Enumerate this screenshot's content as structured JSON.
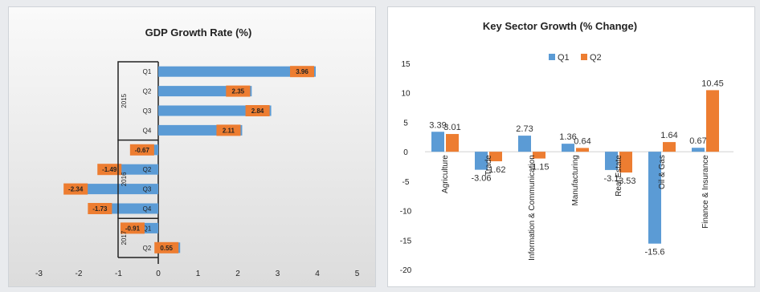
{
  "colors": {
    "q1": "#5b9bd5",
    "q2": "#ed7d31",
    "axis": "#222222"
  },
  "chart_data": [
    {
      "type": "bar",
      "orientation": "horizontal",
      "title": "GDP Growth Rate (%)",
      "xlim": [
        -3,
        5
      ],
      "x_ticks": [
        "-3",
        "-2",
        "-1",
        "0",
        "1",
        "2",
        "3",
        "4",
        "5"
      ],
      "grid": false,
      "groups": [
        {
          "label": "2015",
          "categories": [
            "Q1",
            "Q2",
            "Q3",
            "Q4"
          ],
          "values": [
            3.96,
            2.35,
            2.84,
            2.11
          ]
        },
        {
          "label": "2016",
          "categories": [
            "Q1",
            "Q2",
            "Q3",
            "Q4"
          ],
          "values": [
            -0.67,
            -1.49,
            -2.34,
            -1.73
          ]
        },
        {
          "label": "2017",
          "categories": [
            "Q1",
            "Q2"
          ],
          "values": [
            -0.91,
            0.55
          ]
        }
      ]
    },
    {
      "type": "bar",
      "title": "Key Sector Growth (% Change)",
      "ylim": [
        -20,
        15
      ],
      "y_ticks": [
        "15",
        "10",
        "5",
        "0",
        "-5",
        "-10",
        "-15",
        "-20"
      ],
      "legend_position": "top-center",
      "grid": false,
      "categories": [
        "Agriculture",
        "Trade",
        "Information & Communication",
        "Manufacturing",
        "Real Estate",
        "Oil & Gas",
        "Finance & Insurance"
      ],
      "series": [
        {
          "name": "Q1",
          "values": [
            3.39,
            -3.06,
            2.73,
            1.36,
            -3.1,
            -15.6,
            0.67
          ]
        },
        {
          "name": "Q2",
          "values": [
            3.01,
            -1.62,
            -1.15,
            0.64,
            -3.53,
            1.64,
            10.45
          ]
        }
      ]
    }
  ]
}
